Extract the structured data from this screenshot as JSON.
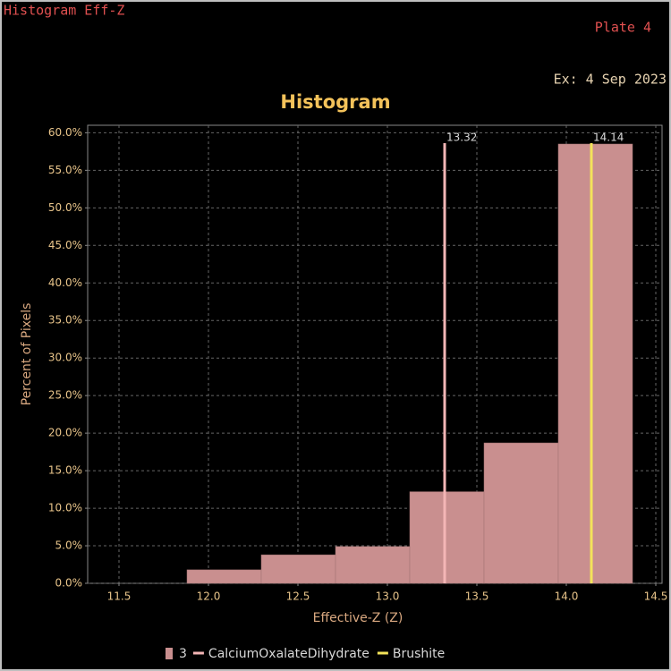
{
  "header": {
    "window_title": "Histogram Eff-Z",
    "plate": "Plate 4",
    "date": "Ex: 4 Sep 2023"
  },
  "chart_data": {
    "type": "histogram",
    "title": "Histogram",
    "x_label": "Effective-Z (Z)",
    "y_label": "Percent of Pixels",
    "bins": [
      11.88,
      12.295,
      12.71,
      13.125,
      13.54,
      13.955,
      14.37
    ],
    "series": [
      {
        "name": "3",
        "color": "#c98f8f",
        "values": [
          1.8,
          3.8,
          4.9,
          12.2,
          18.7,
          58.5
        ]
      }
    ],
    "reference_lines": [
      {
        "name": "CalciumOxalateDihydrate",
        "value": 13.32,
        "color": "#f4b6b6"
      },
      {
        "name": "Brushite",
        "value": 14.14,
        "color": "#f3e35a"
      }
    ],
    "xlim": [
      11.325,
      14.535
    ],
    "xticks": [
      11.5,
      {
        "value": 12,
        "label": "12.0"
      },
      12.5,
      {
        "value": 13,
        "label": "13.0"
      },
      13.5,
      {
        "value": 14,
        "label": "14.0"
      },
      14.5
    ],
    "ylim": [
      0,
      61
    ],
    "yticks": [
      {
        "value": 0,
        "label": "0.0%"
      },
      {
        "value": 5,
        "label": "5.0%"
      },
      {
        "value": 10,
        "label": "10.0%"
      },
      {
        "value": 15,
        "label": "15.0%"
      },
      {
        "value": 20,
        "label": "20.0%"
      },
      {
        "value": 25,
        "label": "25.0%"
      },
      {
        "value": 30,
        "label": "30.0%"
      },
      {
        "value": 35,
        "label": "35.0%"
      },
      {
        "value": 40,
        "label": "40.0%"
      },
      {
        "value": 45,
        "label": "45.0%"
      },
      {
        "value": 50,
        "label": "50.0%"
      },
      {
        "value": 55,
        "label": "55.0%"
      },
      {
        "value": 60,
        "label": "60.0%"
      }
    ],
    "grid": true
  }
}
